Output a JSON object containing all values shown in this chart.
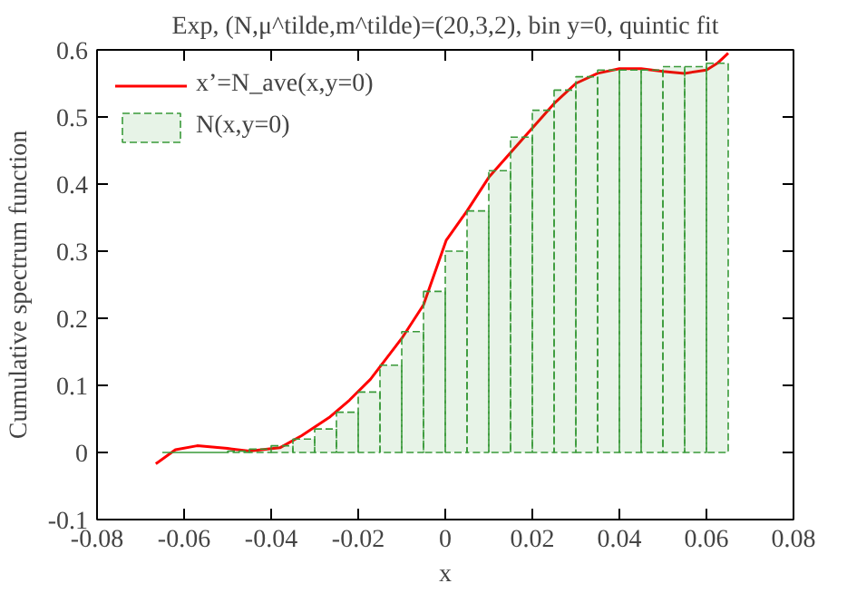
{
  "chart_data": {
    "type": "histogram",
    "title": "Exp, (N,μ^tilde,m^tilde)=(20,3,2), bin y=0, quintic fit",
    "xlabel": "x",
    "ylabel": "Cumulative spectrum function",
    "xlim": [
      -0.08,
      0.08
    ],
    "ylim": [
      -0.1,
      0.6
    ],
    "xticks": [
      -0.08,
      -0.06,
      -0.04,
      -0.02,
      0,
      0.02,
      0.04,
      0.06,
      0.08
    ],
    "yticks": [
      -0.1,
      0,
      0.1,
      0.2,
      0.3,
      0.4,
      0.5,
      0.6
    ],
    "series": [
      {
        "name": "x’=N_ave(x,y=0)",
        "type": "line",
        "color": "#ff0000",
        "x": [
          -0.0665,
          -0.062,
          -0.057,
          -0.05,
          -0.045,
          -0.038,
          -0.033,
          -0.0267,
          -0.022,
          -0.0172,
          -0.01,
          -0.005,
          0.0002,
          0.005,
          0.01,
          0.0176,
          0.025,
          0.03,
          0.035,
          0.04,
          0.045,
          0.05,
          0.055,
          0.06,
          0.0625,
          0.065
        ],
        "values": [
          -0.017,
          0.004,
          0.01,
          0.006,
          0.002,
          0.007,
          0.025,
          0.052,
          0.078,
          0.109,
          0.17,
          0.22,
          0.316,
          0.36,
          0.41,
          0.466,
          0.52,
          0.55,
          0.565,
          0.572,
          0.572,
          0.568,
          0.565,
          0.57,
          0.58,
          0.595
        ]
      },
      {
        "name": "N(x,y=0)",
        "color": "#3a9a3a",
        "bins": [
          -0.065,
          -0.06,
          -0.055,
          -0.05,
          -0.045,
          -0.04,
          -0.035,
          -0.03,
          -0.025,
          -0.02,
          -0.015,
          -0.01,
          -0.005,
          0,
          0.005,
          0.01,
          0.015,
          0.02,
          0.025,
          0.03,
          0.035,
          0.04,
          0.045,
          0.05,
          0.055,
          0.06,
          0.065
        ],
        "values": [
          0,
          0,
          0,
          0.002,
          0.005,
          0.01,
          0.02,
          0.035,
          0.06,
          0.09,
          0.13,
          0.18,
          0.24,
          0.3,
          0.36,
          0.42,
          0.47,
          0.51,
          0.54,
          0.56,
          0.57,
          0.57,
          0.57,
          0.575,
          0.575,
          0.58
        ]
      }
    ],
    "legend": "top left",
    "grid": false,
    "line_style": "solid"
  }
}
